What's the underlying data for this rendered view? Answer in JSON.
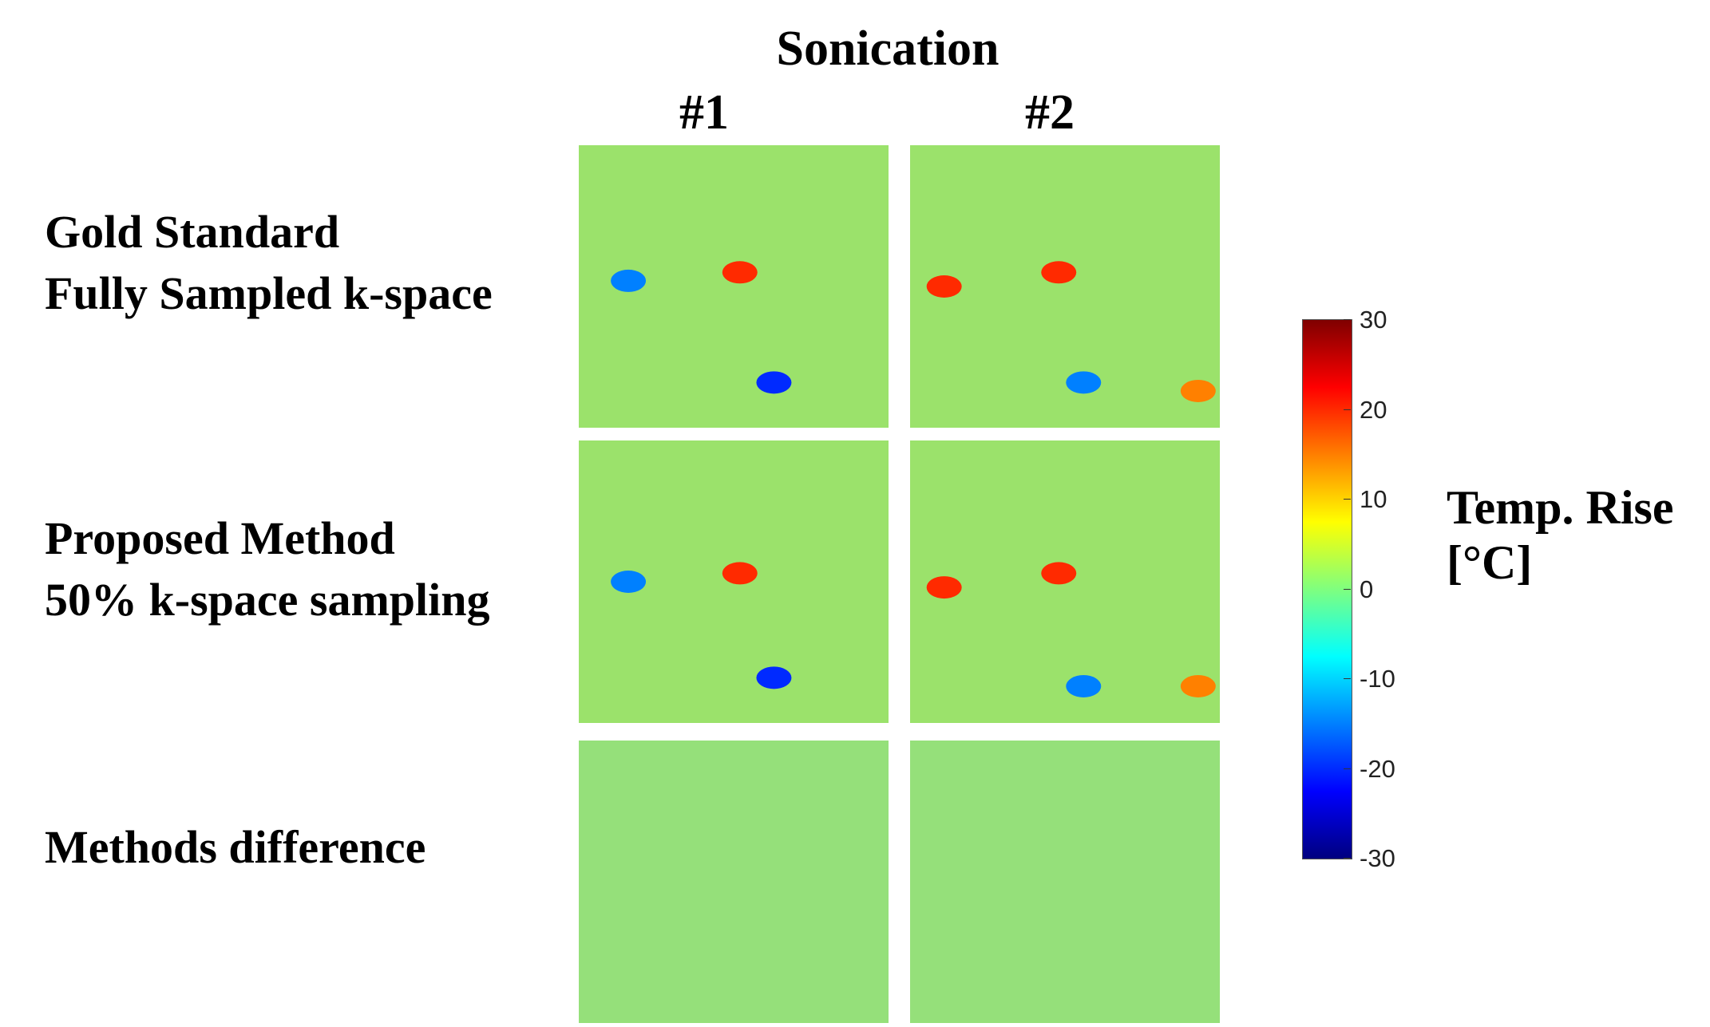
{
  "title": "Sonication",
  "columns": [
    "#1",
    "#2"
  ],
  "rows": [
    {
      "line1": "Gold Standard",
      "line2": "Fully Sampled k-space"
    },
    {
      "line1": "Proposed Method",
      "line2": "50% k-space sampling"
    },
    {
      "line1": "Methods difference",
      "line2": ""
    }
  ],
  "colorbar": {
    "label_line1": "Temp. Rise",
    "label_line2": "[°C]",
    "ticks": [
      "30",
      "20",
      "10",
      "0",
      "-10",
      "-20",
      "-30"
    ],
    "colormap": "jet"
  },
  "chart_data": {
    "type": "heatmap",
    "title": "Sonication",
    "column_labels": [
      "#1",
      "#2"
    ],
    "row_labels": [
      "Gold Standard Fully Sampled k-space",
      "Proposed Method 50% k-space sampling",
      "Methods difference"
    ],
    "value_range": [
      -30,
      30
    ],
    "colorbar_label": "Temp. Rise [°C]",
    "colorbar_ticks": [
      30,
      20,
      10,
      0,
      -10,
      -20,
      -30
    ],
    "panels": [
      {
        "row": 0,
        "col": 0,
        "hotspots": [
          {
            "x": 0.52,
            "y": 0.45,
            "value": 20
          }
        ],
        "coldspots": [
          {
            "x": 0.16,
            "y": 0.48,
            "value": -15
          },
          {
            "x": 0.63,
            "y": 0.84,
            "value": -20
          }
        ]
      },
      {
        "row": 0,
        "col": 1,
        "hotspots": [
          {
            "x": 0.48,
            "y": 0.45,
            "value": 20
          },
          {
            "x": 0.11,
            "y": 0.5,
            "value": 20
          },
          {
            "x": 0.93,
            "y": 0.87,
            "value": 15
          }
        ],
        "coldspots": [
          {
            "x": 0.56,
            "y": 0.84,
            "value": -15
          }
        ]
      },
      {
        "row": 1,
        "col": 0,
        "hotspots": [
          {
            "x": 0.52,
            "y": 0.47,
            "value": 20
          }
        ],
        "coldspots": [
          {
            "x": 0.16,
            "y": 0.5,
            "value": -15
          },
          {
            "x": 0.63,
            "y": 0.84,
            "value": -20
          }
        ]
      },
      {
        "row": 1,
        "col": 1,
        "hotspots": [
          {
            "x": 0.48,
            "y": 0.47,
            "value": 20
          },
          {
            "x": 0.11,
            "y": 0.52,
            "value": 20
          },
          {
            "x": 0.93,
            "y": 0.87,
            "value": 15
          }
        ],
        "coldspots": [
          {
            "x": 0.56,
            "y": 0.87,
            "value": -15
          }
        ]
      },
      {
        "row": 2,
        "col": 0,
        "hotspots": [],
        "coldspots": []
      },
      {
        "row": 2,
        "col": 1,
        "hotspots": [],
        "coldspots": []
      }
    ]
  }
}
